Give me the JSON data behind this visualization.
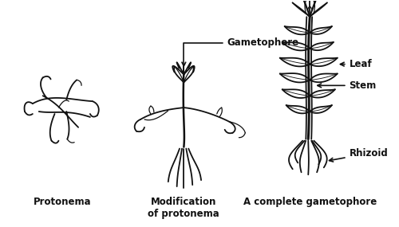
{
  "bg_color": "#ffffff",
  "fig_width": 5.0,
  "fig_height": 2.85,
  "dpi": 100,
  "labels": {
    "protonema": "Protonema",
    "modification": "Modification\nof protonema",
    "complete": "A complete gametophore",
    "gametophore": "Gametophore",
    "leaf": "Leaf",
    "stem": "Stem",
    "rhizoid": "Rhizoid"
  },
  "label_fontsize": 8.5,
  "annotation_fontsize": 8.5,
  "line_color": "#111111"
}
